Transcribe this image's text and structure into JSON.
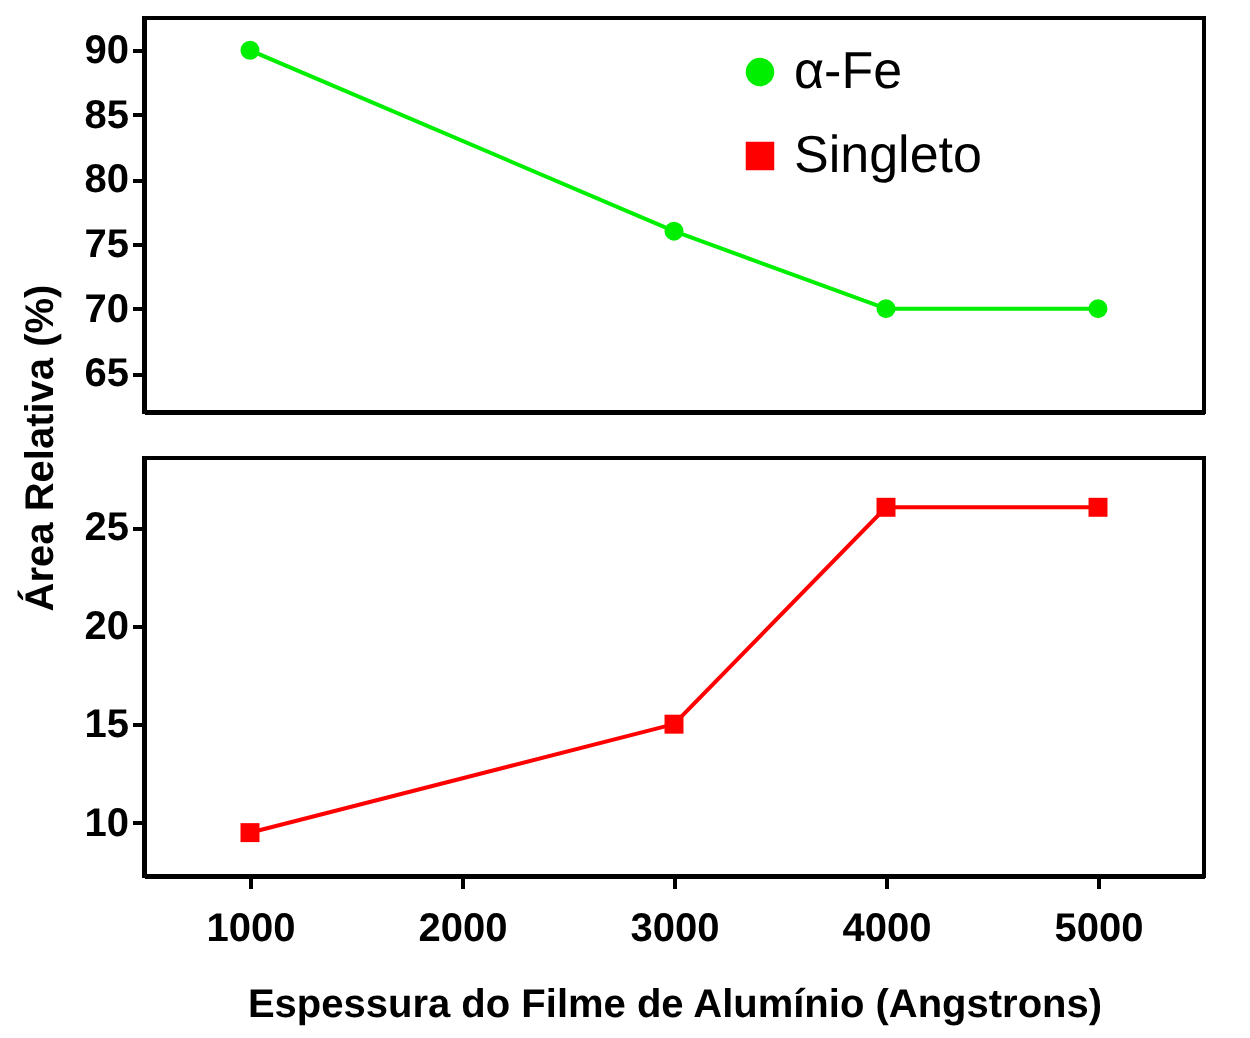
{
  "chart_data": [
    {
      "type": "line",
      "ylabel": "Área Relativa (%)",
      "x": [
        1000,
        3000,
        4000,
        5000
      ],
      "xlim": [
        500,
        5500
      ],
      "xticks": [
        1000,
        2000,
        3000,
        4000,
        5000
      ],
      "ylim": [
        62,
        92.5
      ],
      "yticks": [
        65,
        70,
        75,
        80,
        85,
        90
      ],
      "tick_labels": "y",
      "legend": "top right",
      "marker": "circle",
      "grid": false,
      "series": [
        {
          "name": "α-Fe",
          "color": "#00ee00",
          "values": [
            90,
            76,
            70,
            70
          ]
        }
      ]
    },
    {
      "type": "line",
      "xlabel": "Espessura do Filme de Alumínio (Angstrons)",
      "x": [
        1000,
        3000,
        4000,
        5000
      ],
      "xlim": [
        500,
        5500
      ],
      "xticks": [
        1000,
        2000,
        3000,
        4000,
        5000
      ],
      "ylim": [
        7.3,
        28.5
      ],
      "yticks": [
        10,
        15,
        20,
        25
      ],
      "legend": "top right",
      "marker": "square",
      "grid": false,
      "series": [
        {
          "name": "Singleto",
          "color": "#ff0000",
          "values": [
            9.5,
            15,
            26,
            26
          ]
        }
      ]
    }
  ]
}
